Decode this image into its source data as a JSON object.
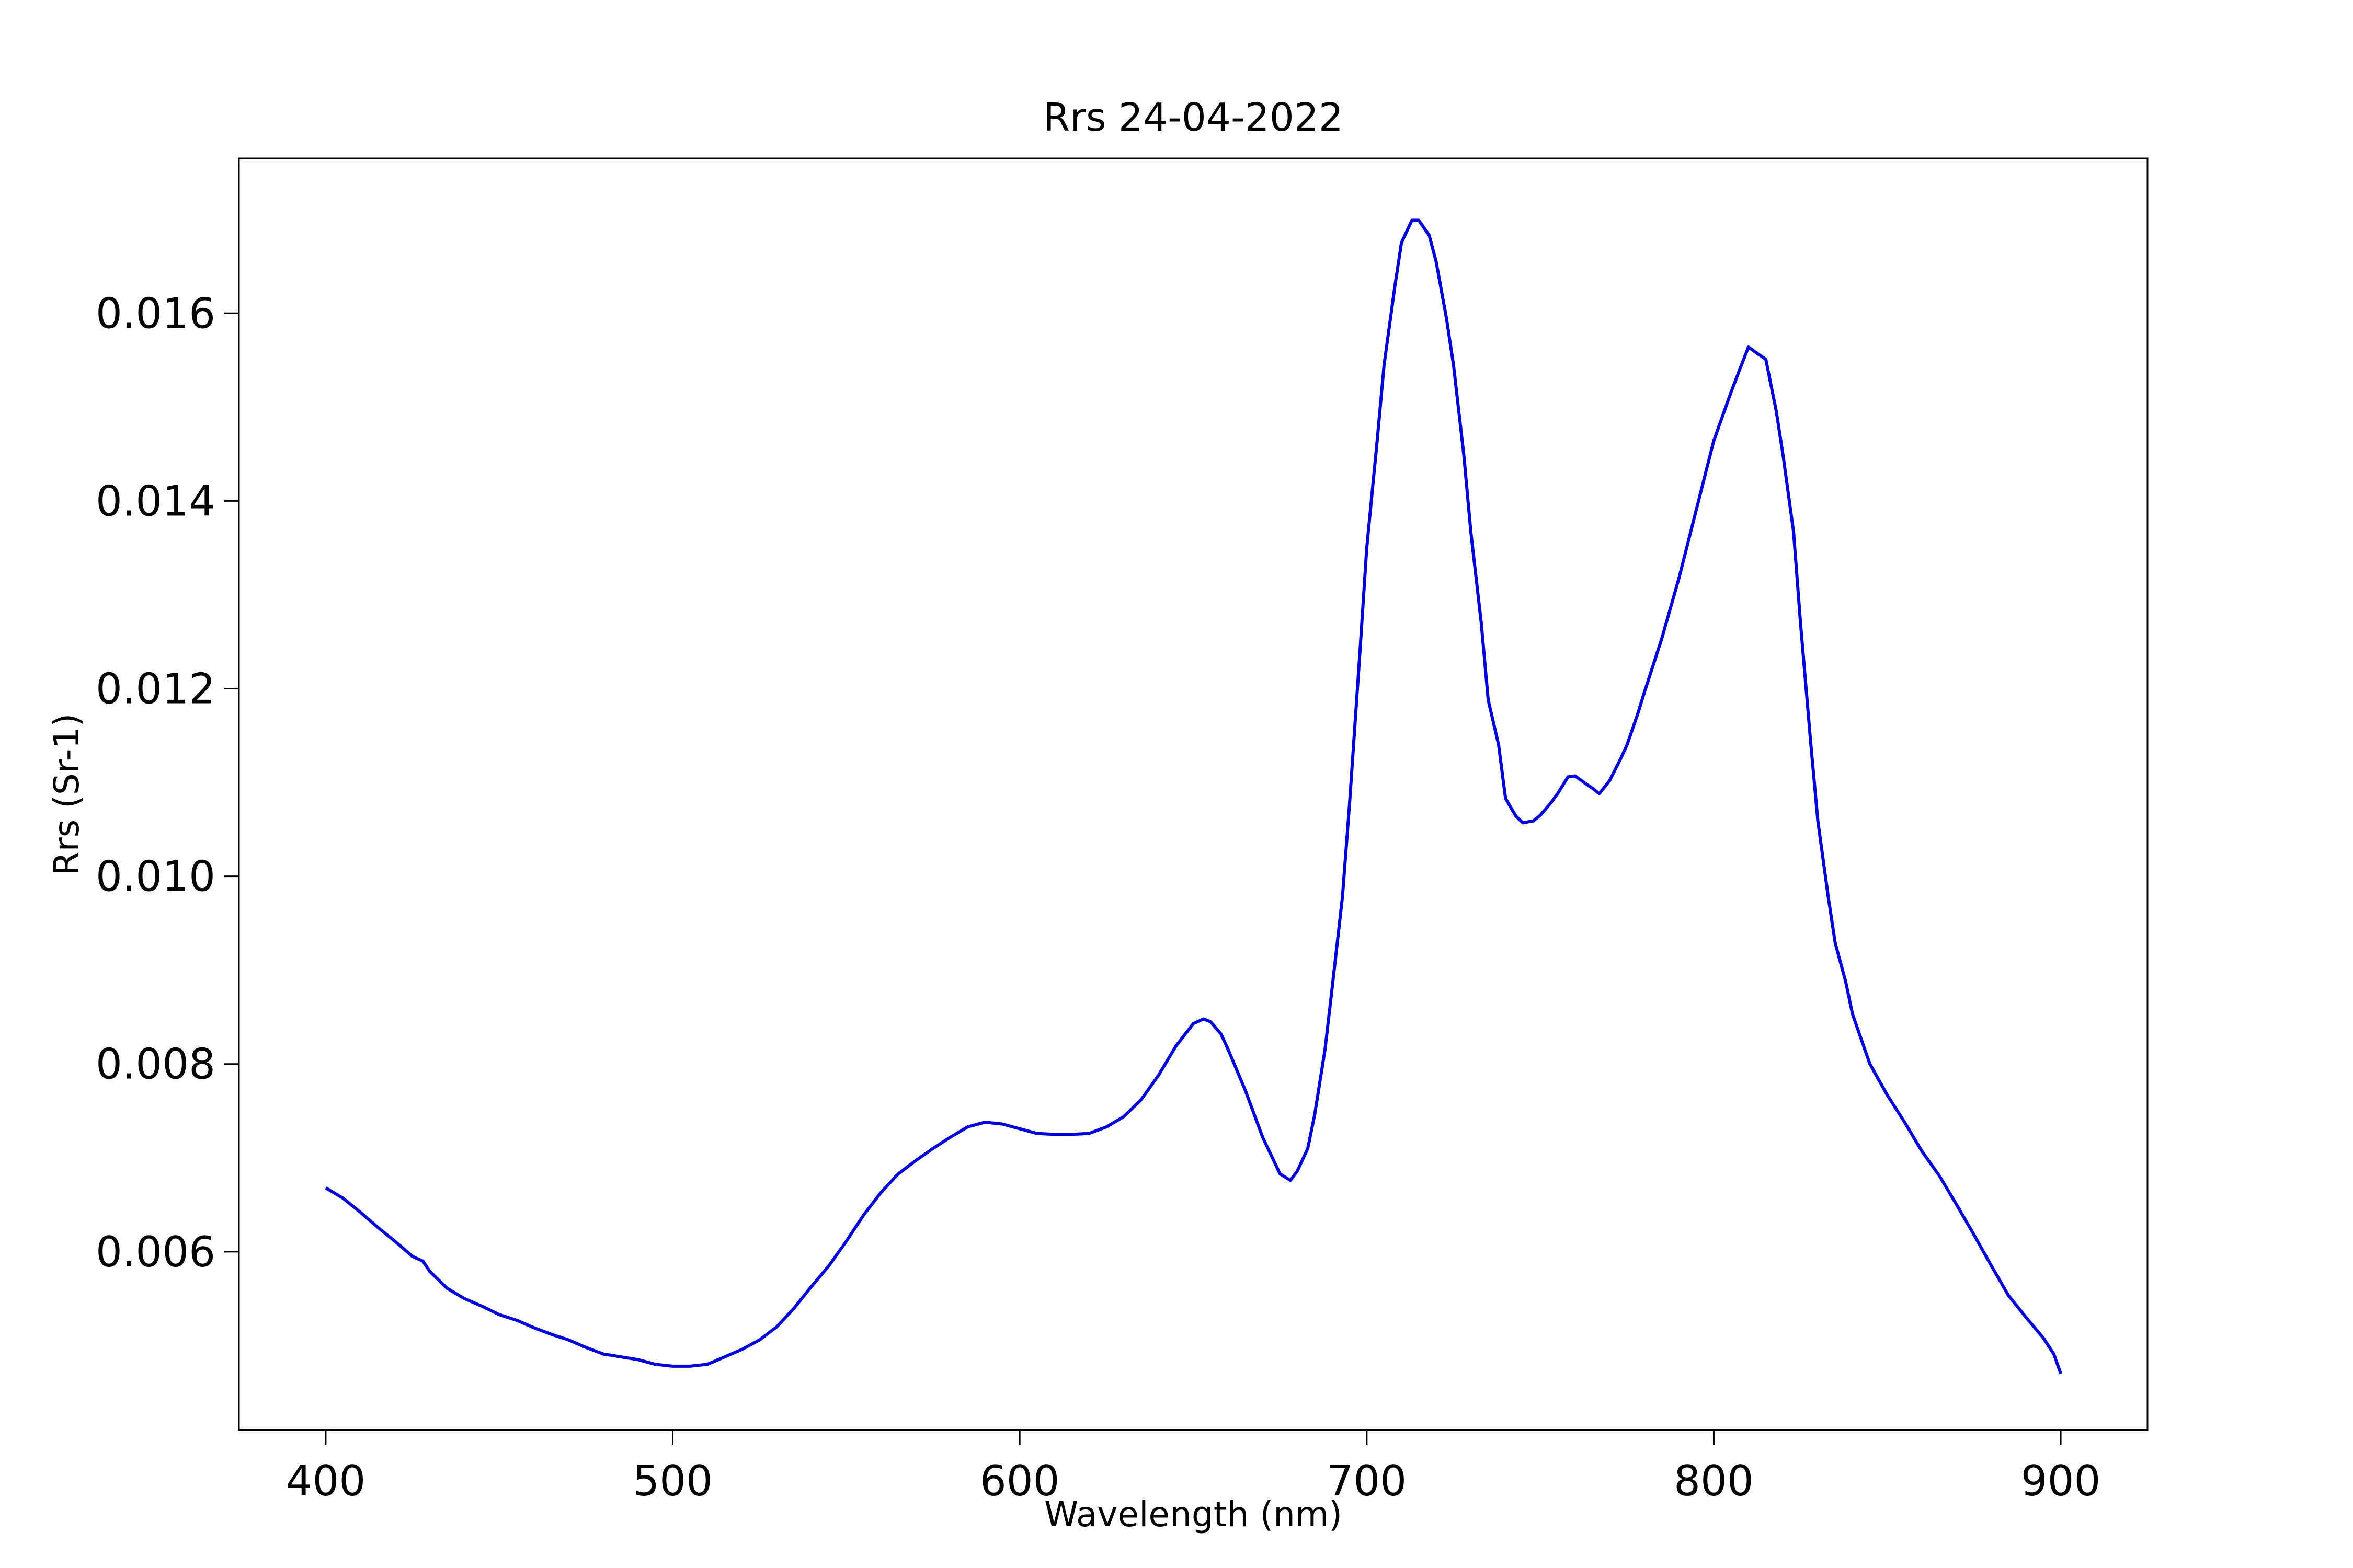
{
  "chart_data": {
    "type": "line",
    "title": "Rrs 24-04-2022",
    "x_label": "Wavelength (nm)",
    "y_label": "Rrs (Sr-1)",
    "xlim": [
      375,
      925
    ],
    "ylim": [
      0.0041,
      0.01765
    ],
    "xticks": [
      400,
      500,
      600,
      700,
      800,
      900
    ],
    "yticks": [
      0.006,
      0.008,
      {
        "value": 0.01,
        "label": "0.010"
      },
      0.012,
      0.014,
      0.016
    ],
    "grid": false,
    "x": [
      400,
      405,
      410,
      415,
      420,
      425,
      428,
      430,
      435,
      440,
      445,
      450,
      455,
      460,
      465,
      470,
      475,
      480,
      485,
      490,
      495,
      500,
      505,
      510,
      515,
      520,
      525,
      530,
      535,
      540,
      545,
      550,
      555,
      560,
      565,
      570,
      575,
      580,
      585,
      590,
      595,
      600,
      605,
      610,
      615,
      620,
      625,
      630,
      635,
      640,
      645,
      650,
      653,
      655,
      658,
      660,
      665,
      670,
      675,
      678,
      680,
      683,
      685,
      688,
      690,
      693,
      695,
      698,
      700,
      703,
      705,
      708,
      710,
      713,
      715,
      718,
      720,
      723,
      725,
      728,
      730,
      733,
      735,
      738,
      740,
      743,
      745,
      748,
      750,
      753,
      755,
      758,
      760,
      763,
      765,
      767,
      770,
      773,
      775,
      778,
      780,
      785,
      790,
      795,
      800,
      805,
      808,
      810,
      813,
      815,
      818,
      820,
      823,
      825,
      828,
      830,
      833,
      835,
      838,
      840,
      845,
      850,
      855,
      860,
      865,
      870,
      875,
      880,
      885,
      890,
      895,
      898,
      900
    ],
    "series": [
      {
        "name": "Rrs",
        "color": "#0000dd",
        "values": [
          0.00668,
          0.00657,
          0.00642,
          0.00626,
          0.00611,
          0.00595,
          0.0059,
          0.00579,
          0.00561,
          0.0055,
          0.00542,
          0.00533,
          0.00527,
          0.00519,
          0.00512,
          0.00506,
          0.00498,
          0.00491,
          0.00488,
          0.00485,
          0.0048,
          0.00478,
          0.00478,
          0.0048,
          0.00488,
          0.00496,
          0.00506,
          0.0052,
          0.0054,
          0.00563,
          0.00585,
          0.00611,
          0.00639,
          0.00663,
          0.00683,
          0.00697,
          0.0071,
          0.00722,
          0.00733,
          0.00738,
          0.00736,
          0.00731,
          0.00726,
          0.00725,
          0.00725,
          0.00726,
          0.00733,
          0.00744,
          0.00762,
          0.00788,
          0.00819,
          0.00843,
          0.00848,
          0.00845,
          0.00832,
          0.00816,
          0.00772,
          0.00722,
          0.00683,
          0.00676,
          0.00686,
          0.0071,
          0.00746,
          0.00816,
          0.0088,
          0.00978,
          0.01075,
          0.01237,
          0.0135,
          0.01464,
          0.01545,
          0.01626,
          0.01675,
          0.01699,
          0.01699,
          0.01683,
          0.01655,
          0.01594,
          0.01545,
          0.01448,
          0.01367,
          0.0127,
          0.01188,
          0.0114,
          0.01083,
          0.01064,
          0.01057,
          0.01059,
          0.01065,
          0.01078,
          0.01088,
          0.01106,
          0.01107,
          0.01099,
          0.01094,
          0.01088,
          0.01102,
          0.01124,
          0.0114,
          0.01172,
          0.01196,
          0.01253,
          0.01318,
          0.01391,
          0.01464,
          0.01516,
          0.01545,
          0.01564,
          0.01556,
          0.01551,
          0.01496,
          0.01448,
          0.01367,
          0.0127,
          0.0114,
          0.01059,
          0.00978,
          0.00929,
          0.00888,
          0.00853,
          0.008,
          0.00767,
          0.00738,
          0.00707,
          0.00681,
          0.0065,
          0.00618,
          0.00585,
          0.00553,
          0.0053,
          0.00508,
          0.00491,
          0.0047
        ]
      }
    ]
  }
}
